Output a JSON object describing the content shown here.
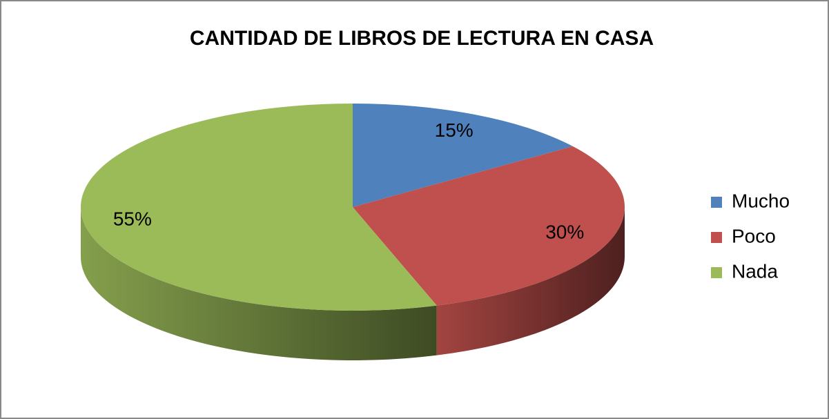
{
  "chart_data": {
    "type": "pie",
    "title": "CANTIDAD DE LIBROS DE LECTURA EN CASA",
    "categories": [
      "Mucho",
      "Poco",
      "Nada"
    ],
    "values": [
      15,
      30,
      55
    ],
    "value_labels": [
      "15%",
      "30%",
      "55%"
    ],
    "colors": [
      "#4f81bd",
      "#c0504d",
      "#9bbb59"
    ],
    "legend": "right"
  }
}
